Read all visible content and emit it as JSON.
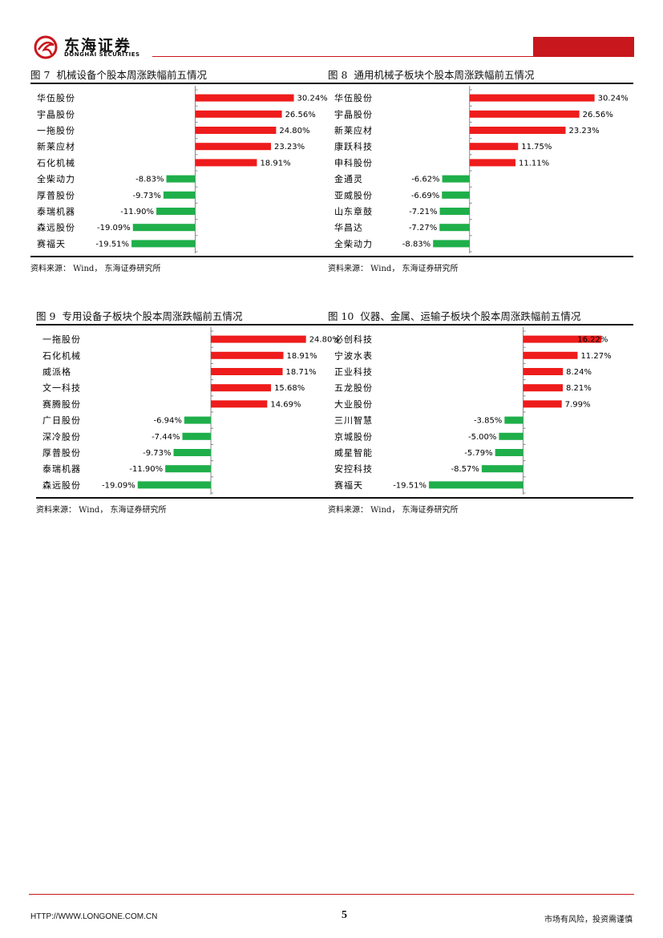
{
  "header": {
    "logo_cn": "东海证券",
    "logo_en": "DONGHAI SECURITIES",
    "brand_color": "#c8171d"
  },
  "colors": {
    "up": "#ee1c1c",
    "down": "#1faf4a"
  },
  "chart_data": [
    {
      "type": "bar",
      "orientation": "horizontal",
      "fig": "图 7",
      "title": "机械设备个股本周涨跌幅前五情况",
      "source": "资料来源： Wind， 东海证券研究所",
      "categories": [
        "华伍股份",
        "宇晶股份",
        "一拖股份",
        "新莱应材",
        "石化机械",
        "全柴动力",
        "厚普股份",
        "泰瑞机器",
        "森远股份",
        "赛福天"
      ],
      "values": [
        30.24,
        26.56,
        24.8,
        23.23,
        18.91,
        -8.83,
        -9.73,
        -11.9,
        -19.09,
        -19.51
      ],
      "labels": [
        "30.24%",
        "26.56%",
        "24.80%",
        "23.23%",
        "18.91%",
        "-8.83%",
        "-9.73%",
        "-11.90%",
        "-19.09%",
        "-19.51%"
      ],
      "xlim": [
        -21,
        36
      ]
    },
    {
      "type": "bar",
      "orientation": "horizontal",
      "fig": "图 8",
      "title": "通用机械子板块个股本周涨跌幅前五情况",
      "source": "资料来源： Wind， 东海证券研究所",
      "categories": [
        "华伍股份",
        "宇晶股份",
        "新莱应材",
        "康跃科技",
        "申科股份",
        "金通灵",
        "亚威股份",
        "山东章鼓",
        "华昌达",
        "全柴动力"
      ],
      "values": [
        30.24,
        26.56,
        23.23,
        11.75,
        11.11,
        -6.62,
        -6.69,
        -7.21,
        -7.27,
        -8.83
      ],
      "labels": [
        "30.24%",
        "26.56%",
        "23.23%",
        "11.75%",
        "11.11%",
        "-6.62%",
        "-6.69%",
        "-7.21%",
        "-7.27%",
        "-8.83%"
      ],
      "xlim": [
        -11,
        34
      ]
    },
    {
      "type": "bar",
      "orientation": "horizontal",
      "fig": "图 9",
      "title": "专用设备子板块个股本周涨跌幅前五情况",
      "source": "资料来源： Wind， 东海证券研究所",
      "categories": [
        "一拖股份",
        "石化机械",
        "威派格",
        "文一科技",
        "赛腾股份",
        "广日股份",
        "深冷股份",
        "厚普股份",
        "泰瑞机器",
        "森远股份"
      ],
      "values": [
        24.8,
        18.91,
        18.71,
        15.68,
        14.69,
        -6.94,
        -7.44,
        -9.73,
        -11.9,
        -19.09
      ],
      "labels": [
        "24.80%",
        "18.91%",
        "18.71%",
        "15.68%",
        "14.69%",
        "-6.94%",
        "-7.44%",
        "-9.73%",
        "-11.90%",
        "-19.09%"
      ],
      "xlim": [
        -20.5,
        28
      ]
    },
    {
      "type": "bar",
      "orientation": "horizontal",
      "fig": "图 10",
      "title": "仪器、金属、运输子板块个股本周涨跌幅前五情况",
      "source": "资料来源： Wind， 东海证券研究所",
      "categories": [
        "必创科技",
        "宁波水表",
        "正业科技",
        "五龙股份",
        "大业股份",
        "三川智慧",
        "京城股份",
        "威星智能",
        "安控科技",
        "赛福天"
      ],
      "values": [
        16.22,
        11.27,
        8.24,
        8.21,
        7.99,
        -3.85,
        -5.0,
        -5.79,
        -8.57,
        -19.51
      ],
      "labels": [
        "16.22%",
        "11.27%",
        "8.24%",
        "8.21%",
        "7.99%",
        "-3.85%",
        "-5.00%",
        "-5.79%",
        "-8.57%",
        "-19.51%"
      ],
      "xlim": [
        -20.5,
        18
      ]
    }
  ],
  "footer": {
    "url": "HTTP://WWW.LONGONE.COM.CN",
    "page": "5",
    "risk": "市场有风险，投资需谨慎"
  }
}
